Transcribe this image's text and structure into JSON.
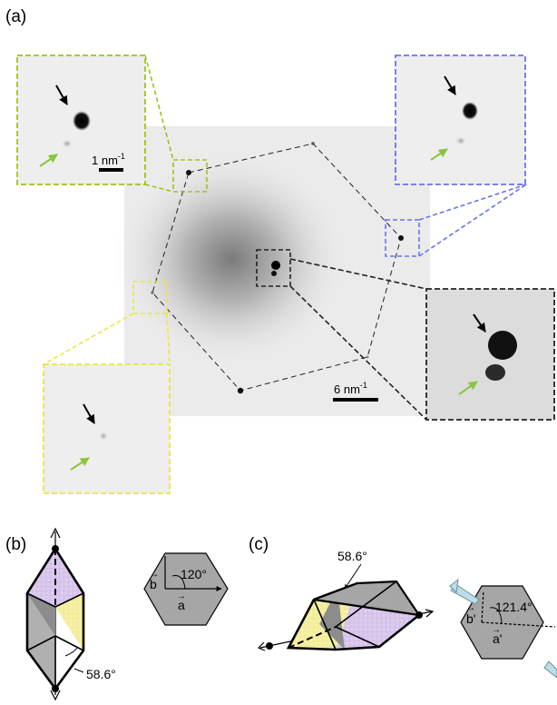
{
  "panels": {
    "a": {
      "label": "(a)",
      "scale_main": "6 nm",
      "scale_main_exp": "-1",
      "scale_inset": "1 nm",
      "scale_inset_exp": "-1",
      "inset_colors": {
        "green": "#9bc320",
        "blue": "#6b73f0",
        "yellow": "#e8e840",
        "black": "#222222"
      },
      "arrow_colors": {
        "primary": "#000000",
        "secondary": "#8cc43a"
      }
    },
    "b": {
      "label": "(b)",
      "angle_hex": "120°",
      "angle_edge": "58.6°",
      "vec_a": "a",
      "vec_b": "b"
    },
    "c": {
      "label": "(c)",
      "angle_top": "58.6°",
      "angle_hex": "121.4°",
      "vec_a": "a'",
      "vec_b": "b'"
    }
  },
  "colors": {
    "hex_fill": "#a6a6a6",
    "face_yellow": "#f5f0a0",
    "face_purple": "#ddc8ee",
    "face_dark": "#8c8c8c",
    "arrow_blue": "#bcdde6"
  }
}
